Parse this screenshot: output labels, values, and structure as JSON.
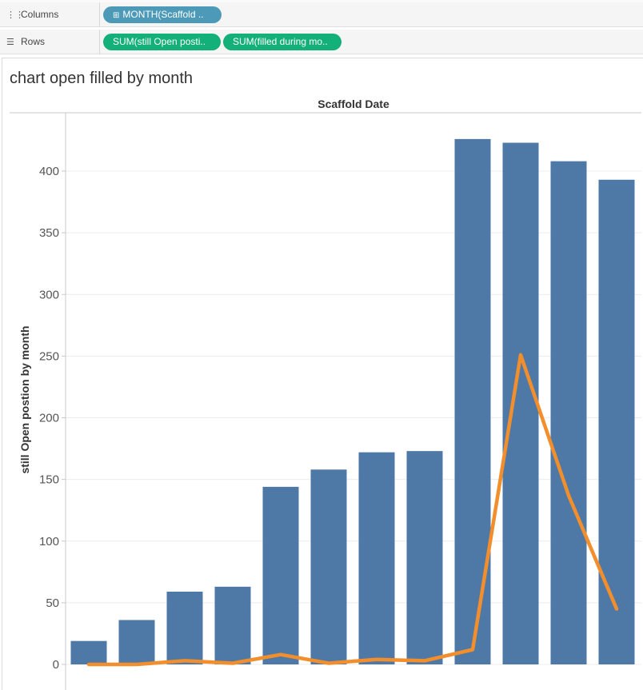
{
  "shelves": {
    "columns": {
      "label": "Columns",
      "pills": [
        {
          "text": "MONTH(Scaffold ..",
          "color": "#4c9ab8"
        }
      ]
    },
    "rows": {
      "label": "Rows",
      "pills": [
        {
          "text": "SUM(still Open posti..",
          "color": "#13b07a"
        },
        {
          "text": "SUM(filled during mo..",
          "color": "#13b07a"
        }
      ]
    }
  },
  "sheet_title": "chart open filled by month",
  "chart_data": {
    "type": "bar",
    "title": "chart open filled by month",
    "column_header": "Scaffold Date",
    "ylabel": "still Open postion by month",
    "ylim": [
      0,
      440
    ],
    "yticks": [
      0,
      50,
      100,
      150,
      200,
      250,
      300,
      350,
      400
    ],
    "grid": true,
    "series": [
      {
        "mark": "bar",
        "color": "#4e79a7",
        "values": [
          19,
          36,
          59,
          63,
          144,
          158,
          172,
          173,
          426,
          423,
          408,
          393
        ]
      },
      {
        "mark": "line",
        "color": "#f28e2b",
        "values": [
          0,
          0,
          3,
          1,
          8,
          1,
          4,
          3,
          12,
          251,
          137,
          45
        ]
      }
    ]
  }
}
